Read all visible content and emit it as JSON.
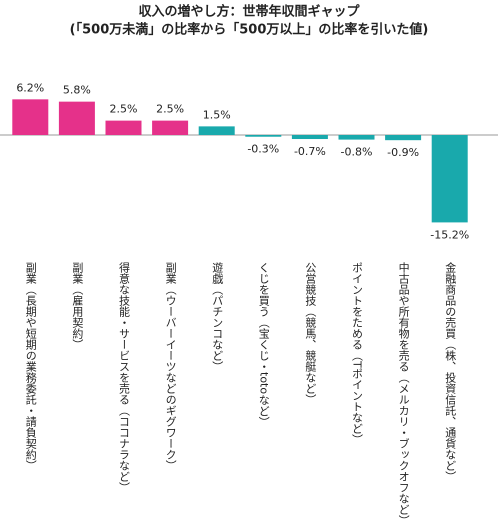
{
  "chart_data": {
    "type": "bar",
    "title": "収入の増やし方：世帯年収間ギャップ",
    "subtitle": "(「500万未満」の比率から「500万以上」の比率を引いた値)",
    "categories": [
      "副業（長期や短期の業務委託・請負契約）",
      "副業（雇用契約）",
      "得意な技能・サービスを売る（ココナラなど）",
      "副業（ウーバーイーツなどのギグワーク）",
      "遊戯（パチンコなど）",
      "くじを買う（宝くじ・totoなど）",
      "公営競技（競馬、競艇など）",
      "ポイントをためる（Tポイントなど）",
      "中古品や所有物を売る（メルカリ・ブックオフなど）",
      "金融商品の売買（株、投資信託、通貨など）"
    ],
    "values": [
      6.2,
      5.8,
      2.5,
      2.5,
      1.5,
      -0.3,
      -0.7,
      -0.8,
      -0.9,
      -15.2
    ],
    "value_labels": [
      "6.2%",
      "5.8%",
      "2.5%",
      "2.5%",
      "1.5%",
      "-0.3%",
      "-0.7%",
      "-0.8%",
      "-0.9%",
      "-15.2%"
    ],
    "colors": [
      "#e5318a",
      "#e5318a",
      "#e5318a",
      "#e5318a",
      "#19a9ac",
      "#19a9ac",
      "#19a9ac",
      "#19a9ac",
      "#19a9ac",
      "#19a9ac"
    ]
  }
}
